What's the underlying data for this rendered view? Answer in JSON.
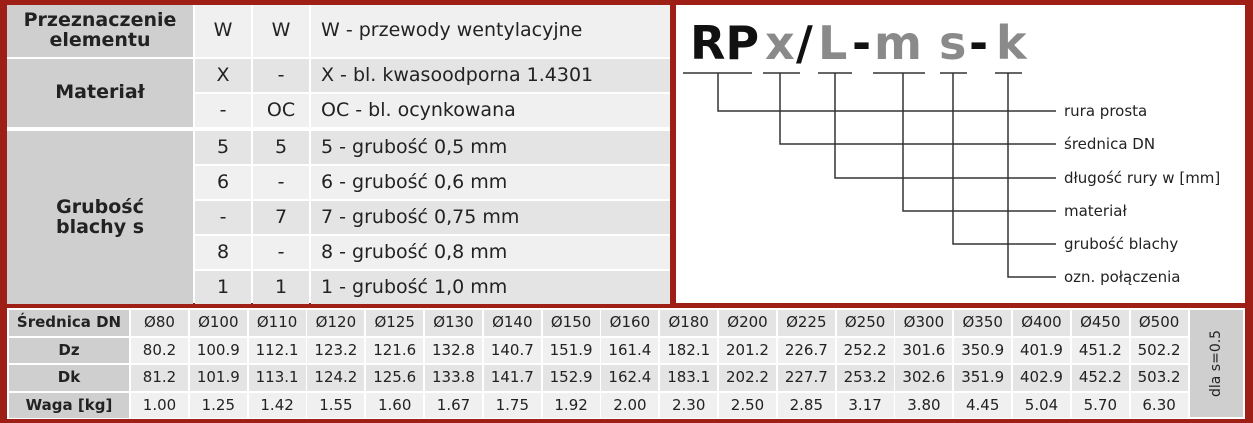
{
  "spec_table": {
    "header": [
      "Przeznaczenie elementu",
      "W",
      "W",
      "W - przewody wentylacyjne"
    ],
    "groups": [
      {
        "label": "Materiał",
        "rows": [
          [
            "X",
            "-",
            "X - bl. kwasoodporna 1.4301"
          ],
          [
            "-",
            "OC",
            "OC - bl. ocynkowana"
          ]
        ]
      },
      {
        "label": "Grubość blachy s",
        "rows": [
          [
            "5",
            "5",
            "5 - grubość 0,5 mm"
          ],
          [
            "6",
            "-",
            "6 - grubość 0,6 mm"
          ],
          [
            "-",
            "7",
            "7 - grubość 0,75 mm"
          ],
          [
            "8",
            "-",
            "8 - grubość 0,8 mm"
          ],
          [
            "1",
            "1",
            "1 - grubość 1,0 mm"
          ]
        ]
      }
    ]
  },
  "code": {
    "parts": [
      "RP",
      "x",
      "/",
      "L",
      "-",
      "m",
      "s",
      "-",
      "k"
    ],
    "labels": [
      "ozn. połączenia",
      "grubość blachy",
      "materiał",
      "długość rury w [mm]",
      "średnica DN",
      "rura prosta"
    ]
  },
  "dims_table": {
    "rows": [
      {
        "label": "Średnica DN",
        "cells": [
          "Ø80",
          "Ø100",
          "Ø110",
          "Ø120",
          "Ø125",
          "Ø130",
          "Ø140",
          "Ø150",
          "Ø160",
          "Ø180",
          "Ø200",
          "Ø225",
          "Ø250",
          "Ø300",
          "Ø350",
          "Ø400",
          "Ø450",
          "Ø500"
        ]
      },
      {
        "label": "Dz",
        "cells": [
          "80.2",
          "100.9",
          "112.1",
          "123.2",
          "121.6",
          "132.8",
          "140.7",
          "151.9",
          "161.4",
          "182.1",
          "201.2",
          "226.7",
          "252.2",
          "301.6",
          "350.9",
          "401.9",
          "451.2",
          "502.2"
        ]
      },
      {
        "label": "Dk",
        "cells": [
          "81.2",
          "101.9",
          "113.1",
          "124.2",
          "125.6",
          "133.8",
          "141.7",
          "152.9",
          "162.4",
          "183.1",
          "202.2",
          "227.7",
          "253.2",
          "302.6",
          "351.9",
          "402.9",
          "452.2",
          "503.2"
        ]
      },
      {
        "label": "Waga [kg]",
        "cells": [
          "1.00",
          "1.25",
          "1.42",
          "1.55",
          "1.60",
          "1.67",
          "1.75",
          "1.92",
          "2.00",
          "2.30",
          "2.50",
          "2.85",
          "3.17",
          "3.80",
          "4.45",
          "5.04",
          "5.70",
          "6.30"
        ]
      }
    ],
    "note": "dla s=0.5"
  }
}
